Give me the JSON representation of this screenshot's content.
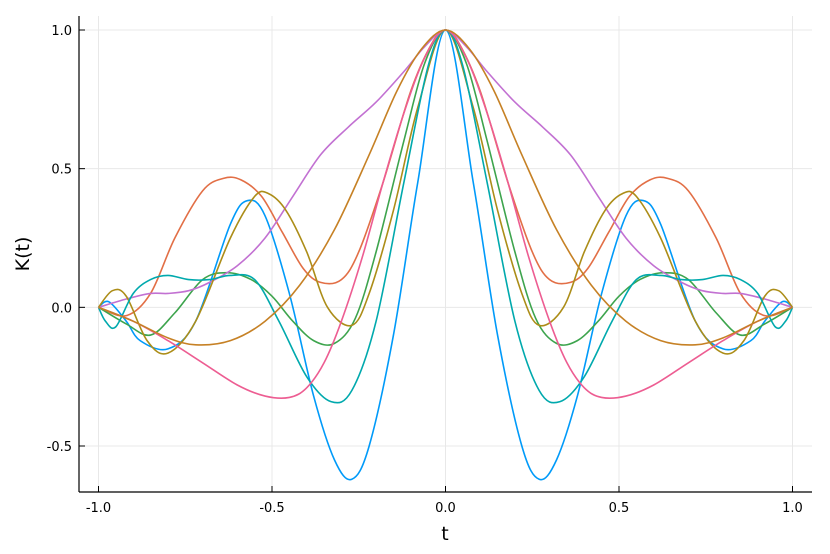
{
  "chart_data": {
    "type": "line",
    "title": "",
    "xlabel": "t",
    "ylabel": "K(t)",
    "xlim": [
      -1.0,
      1.0
    ],
    "ylim": [
      -0.66,
      1.04
    ],
    "xticks": [
      -1.0,
      -0.5,
      0.0,
      0.5,
      1.0
    ],
    "xtick_labels": [
      "-1.0",
      "-0.5",
      "0.0",
      "0.5",
      "1.0"
    ],
    "yticks": [
      -0.5,
      0.0,
      0.5,
      1.0
    ],
    "ytick_labels": [
      "-0.5",
      "0.0",
      "0.5",
      "1.0"
    ],
    "grid": true,
    "legend": "none",
    "series": [
      {
        "color": "#009af9",
        "x": [
          -1.0,
          -0.97,
          -0.92,
          -0.88,
          -0.8,
          -0.72,
          -0.62,
          -0.57,
          -0.52,
          -0.45,
          -0.38,
          -0.32,
          -0.27,
          -0.22,
          -0.15,
          -0.08,
          0.0,
          0.08,
          0.15,
          0.22,
          0.27,
          0.32,
          0.38,
          0.45,
          0.52,
          0.57,
          0.62,
          0.72,
          0.8,
          0.88,
          0.92,
          0.97,
          1.0
        ],
        "y": [
          0.0,
          0.02,
          -0.05,
          -0.12,
          -0.15,
          -0.05,
          0.3,
          0.385,
          0.33,
          0.05,
          -0.32,
          -0.55,
          -0.62,
          -0.5,
          -0.1,
          0.45,
          1.0,
          0.45,
          -0.1,
          -0.5,
          -0.62,
          -0.55,
          -0.32,
          0.05,
          0.33,
          0.385,
          0.3,
          -0.05,
          -0.15,
          -0.12,
          -0.05,
          0.02,
          0.0
        ]
      },
      {
        "color": "#e26f46",
        "x": [
          -1.0,
          -0.92,
          -0.85,
          -0.78,
          -0.7,
          -0.64,
          -0.59,
          -0.53,
          -0.47,
          -0.41,
          -0.36,
          -0.3,
          -0.25,
          -0.18,
          -0.1,
          -0.04,
          0.0,
          0.04,
          0.1,
          0.18,
          0.25,
          0.3,
          0.36,
          0.41,
          0.47,
          0.53,
          0.59,
          0.64,
          0.7,
          0.78,
          0.85,
          0.92,
          1.0
        ],
        "y": [
          0.0,
          -0.03,
          0.05,
          0.25,
          0.42,
          0.465,
          0.46,
          0.4,
          0.27,
          0.14,
          0.09,
          0.1,
          0.2,
          0.45,
          0.78,
          0.95,
          1.0,
          0.95,
          0.78,
          0.45,
          0.2,
          0.1,
          0.09,
          0.14,
          0.27,
          0.4,
          0.46,
          0.465,
          0.42,
          0.25,
          0.05,
          -0.03,
          0.0
        ]
      },
      {
        "color": "#3da44d",
        "x": [
          -1.0,
          -0.92,
          -0.85,
          -0.78,
          -0.7,
          -0.63,
          -0.56,
          -0.5,
          -0.44,
          -0.38,
          -0.32,
          -0.26,
          -0.2,
          -0.12,
          -0.06,
          0.0,
          0.06,
          0.12,
          0.2,
          0.26,
          0.32,
          0.38,
          0.44,
          0.5,
          0.56,
          0.63,
          0.7,
          0.78,
          0.85,
          0.92,
          1.0
        ],
        "y": [
          0.0,
          -0.06,
          -0.1,
          -0.02,
          0.1,
          0.125,
          0.1,
          0.04,
          -0.05,
          -0.12,
          -0.13,
          -0.04,
          0.2,
          0.6,
          0.88,
          1.0,
          0.88,
          0.6,
          0.2,
          -0.04,
          -0.13,
          -0.12,
          -0.05,
          0.04,
          0.1,
          0.125,
          0.1,
          -0.02,
          -0.1,
          -0.06,
          0.0
        ]
      },
      {
        "color": "#c271d2",
        "x": [
          -1.0,
          -0.92,
          -0.85,
          -0.8,
          -0.74,
          -0.68,
          -0.6,
          -0.52,
          -0.44,
          -0.36,
          -0.28,
          -0.2,
          -0.12,
          -0.06,
          0.0,
          0.06,
          0.12,
          0.2,
          0.28,
          0.36,
          0.44,
          0.52,
          0.6,
          0.68,
          0.74,
          0.8,
          0.85,
          0.92,
          1.0
        ],
        "y": [
          0.0,
          0.03,
          0.05,
          0.05,
          0.06,
          0.09,
          0.15,
          0.25,
          0.4,
          0.55,
          0.65,
          0.74,
          0.85,
          0.94,
          1.0,
          0.94,
          0.85,
          0.74,
          0.65,
          0.55,
          0.4,
          0.25,
          0.15,
          0.09,
          0.06,
          0.05,
          0.05,
          0.03,
          0.0
        ]
      },
      {
        "color": "#ac8d18",
        "x": [
          -1.0,
          -0.96,
          -0.92,
          -0.86,
          -0.8,
          -0.72,
          -0.62,
          -0.55,
          -0.51,
          -0.46,
          -0.4,
          -0.34,
          -0.27,
          -0.22,
          -0.15,
          -0.08,
          0.0,
          0.08,
          0.15,
          0.22,
          0.27,
          0.34,
          0.4,
          0.46,
          0.51,
          0.55,
          0.62,
          0.72,
          0.8,
          0.86,
          0.92,
          0.96,
          1.0
        ],
        "y": [
          0.0,
          0.06,
          0.04,
          -0.12,
          -0.165,
          -0.05,
          0.25,
          0.4,
          0.41,
          0.35,
          0.2,
          0.0,
          -0.065,
          0.05,
          0.35,
          0.72,
          1.0,
          0.72,
          0.35,
          0.05,
          -0.065,
          0.0,
          0.2,
          0.35,
          0.41,
          0.4,
          0.25,
          -0.05,
          -0.165,
          -0.12,
          0.04,
          0.06,
          0.0
        ]
      },
      {
        "color": "#00a9ad",
        "x": [
          -1.0,
          -0.98,
          -0.95,
          -0.9,
          -0.85,
          -0.8,
          -0.74,
          -0.68,
          -0.62,
          -0.55,
          -0.48,
          -0.4,
          -0.33,
          -0.27,
          -0.2,
          -0.12,
          -0.05,
          0.0,
          0.05,
          0.12,
          0.2,
          0.27,
          0.33,
          0.4,
          0.48,
          0.55,
          0.62,
          0.68,
          0.74,
          0.8,
          0.85,
          0.9,
          0.95,
          0.98,
          1.0
        ],
        "y": [
          0.0,
          -0.05,
          -0.07,
          0.05,
          0.1,
          0.115,
          0.1,
          0.1,
          0.115,
          0.1,
          -0.05,
          -0.25,
          -0.34,
          -0.3,
          -0.05,
          0.45,
          0.87,
          1.0,
          0.87,
          0.45,
          -0.05,
          -0.3,
          -0.34,
          -0.25,
          -0.05,
          0.1,
          0.115,
          0.1,
          0.1,
          0.115,
          0.1,
          0.05,
          -0.07,
          -0.05,
          0.0
        ]
      },
      {
        "color": "#ed5d92",
        "x": [
          -1.0,
          -0.9,
          -0.8,
          -0.7,
          -0.6,
          -0.52,
          -0.45,
          -0.4,
          -0.35,
          -0.3,
          -0.24,
          -0.18,
          -0.12,
          -0.06,
          0.0,
          0.06,
          0.12,
          0.18,
          0.24,
          0.3,
          0.35,
          0.4,
          0.45,
          0.52,
          0.6,
          0.7,
          0.8,
          0.9,
          1.0
        ],
        "y": [
          0.0,
          -0.05,
          -0.12,
          -0.2,
          -0.28,
          -0.32,
          -0.325,
          -0.29,
          -0.2,
          -0.05,
          0.18,
          0.45,
          0.7,
          0.9,
          1.0,
          0.9,
          0.7,
          0.45,
          0.18,
          -0.05,
          -0.2,
          -0.29,
          -0.325,
          -0.32,
          -0.28,
          -0.2,
          -0.12,
          -0.05,
          0.0
        ]
      },
      {
        "color": "#c68125",
        "x": [
          -1.0,
          -0.9,
          -0.8,
          -0.72,
          -0.62,
          -0.52,
          -0.42,
          -0.32,
          -0.22,
          -0.14,
          -0.07,
          0.0,
          0.07,
          0.14,
          0.22,
          0.32,
          0.42,
          0.52,
          0.62,
          0.72,
          0.8,
          0.9,
          1.0
        ],
        "y": [
          0.0,
          -0.05,
          -0.11,
          -0.135,
          -0.12,
          -0.05,
          0.08,
          0.28,
          0.55,
          0.78,
          0.93,
          1.0,
          0.93,
          0.78,
          0.55,
          0.28,
          0.08,
          -0.05,
          -0.12,
          -0.135,
          -0.11,
          -0.05,
          0.0
        ]
      }
    ]
  }
}
